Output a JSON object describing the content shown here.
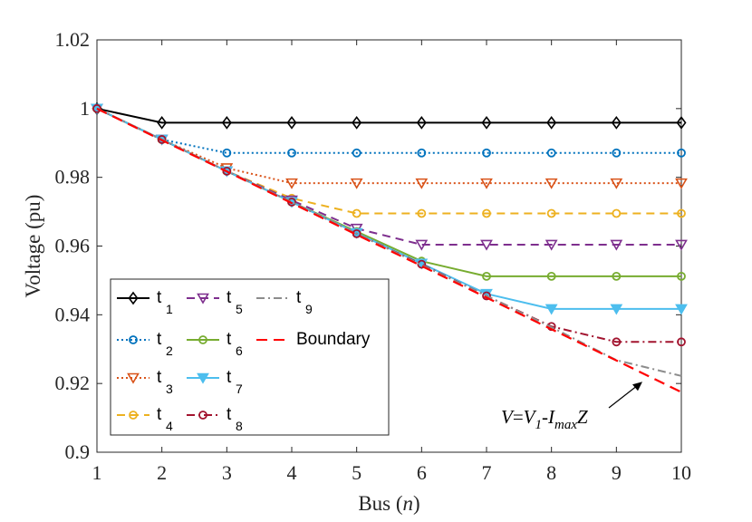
{
  "chart_data": {
    "type": "line",
    "xlabel": "Bus (n)",
    "xlabel_main": "Bus ",
    "xlabel_var": "n",
    "ylabel": "Voltage (pu)",
    "xlim": [
      1,
      10
    ],
    "ylim": [
      0.9,
      1.02
    ],
    "x_ticks": [
      1,
      2,
      3,
      4,
      5,
      6,
      7,
      8,
      9,
      10
    ],
    "y_ticks": [
      0.9,
      0.92,
      0.94,
      0.96,
      0.98,
      1,
      1.02
    ],
    "y_tick_labels": [
      "0.9",
      "0.92",
      "0.94",
      "0.96",
      "0.98",
      "1",
      "1.02"
    ],
    "grid": false,
    "legend_position": "bottom-left",
    "x": [
      1,
      2,
      3,
      4,
      5,
      6,
      7,
      8,
      9,
      10
    ],
    "series": [
      {
        "name": "t1",
        "label": "t",
        "sub": "1",
        "color": "#000000",
        "dash": "solid",
        "marker": "diamond",
        "values": [
          1.0,
          0.9959,
          0.9959,
          0.9959,
          0.9959,
          0.9959,
          0.9959,
          0.9959,
          0.9959,
          0.9959
        ]
      },
      {
        "name": "t2",
        "label": "t",
        "sub": "2",
        "color": "#0072BD",
        "dash": "dotted",
        "marker": "circle",
        "values": [
          1.0,
          0.991,
          0.9871,
          0.9871,
          0.9871,
          0.9871,
          0.9871,
          0.9871,
          0.9871,
          0.9871
        ]
      },
      {
        "name": "t3",
        "label": "t",
        "sub": "3",
        "color": "#D95319",
        "dash": "dotted",
        "marker": "triangle-down",
        "values": [
          1.0,
          0.991,
          0.9827,
          0.9783,
          0.9783,
          0.9783,
          0.9783,
          0.9783,
          0.9783,
          0.9783
        ]
      },
      {
        "name": "t4",
        "label": "t",
        "sub": "4",
        "color": "#EDB120",
        "dash": "dashed",
        "marker": "circle",
        "values": [
          1.0,
          0.991,
          0.9818,
          0.9739,
          0.9695,
          0.9695,
          0.9695,
          0.9695,
          0.9695,
          0.9695
        ]
      },
      {
        "name": "t5",
        "label": "t",
        "sub": "5",
        "color": "#7E2F8E",
        "dash": "dashed",
        "marker": "triangle-down",
        "values": [
          1.0,
          0.991,
          0.9818,
          0.9733,
          0.9651,
          0.9604,
          0.9604,
          0.9604,
          0.9604,
          0.9604
        ]
      },
      {
        "name": "t6",
        "label": "t",
        "sub": "6",
        "color": "#77AC30",
        "dash": "solid",
        "marker": "circle",
        "values": [
          1.0,
          0.991,
          0.9818,
          0.9728,
          0.9642,
          0.9556,
          0.9512,
          0.9512,
          0.9512,
          0.9512
        ]
      },
      {
        "name": "t7",
        "label": "t",
        "sub": "7",
        "color": "#4DBEEE",
        "dash": "solid",
        "marker": "triangle-down",
        "values": [
          1.0,
          0.991,
          0.9818,
          0.9728,
          0.9638,
          0.9549,
          0.9461,
          0.9417,
          0.9417,
          0.9417
        ]
      },
      {
        "name": "t8",
        "label": "t",
        "sub": "8",
        "color": "#A2142F",
        "dash": "dashdot",
        "marker": "circle",
        "values": [
          1.0,
          0.991,
          0.9818,
          0.9728,
          0.9636,
          0.9547,
          0.9455,
          0.9366,
          0.9321,
          0.9321
        ]
      },
      {
        "name": "t9",
        "label": "t",
        "sub": "9",
        "color": "#8C8C8C",
        "dash": "dashdot",
        "marker": "none",
        "values": [
          1.0,
          0.991,
          0.9818,
          0.9728,
          0.9636,
          0.9545,
          0.9455,
          0.9364,
          0.9268,
          0.9222
        ]
      },
      {
        "name": "Boundary",
        "label": "Boundary",
        "sub": "",
        "color": "#FF0000",
        "dash": "longdash",
        "marker": "none",
        "values": [
          1.0,
          0.9908,
          0.9817,
          0.9725,
          0.9633,
          0.9542,
          0.945,
          0.9358,
          0.9267,
          0.9175
        ]
      }
    ],
    "annotation": {
      "parts": [
        "V",
        "=",
        "V",
        "1",
        "-",
        "I",
        "max",
        "Z"
      ],
      "text": "V=V1-ImaxZ",
      "arrow_to": {
        "x": 9.4,
        "y": 0.9205
      }
    }
  }
}
